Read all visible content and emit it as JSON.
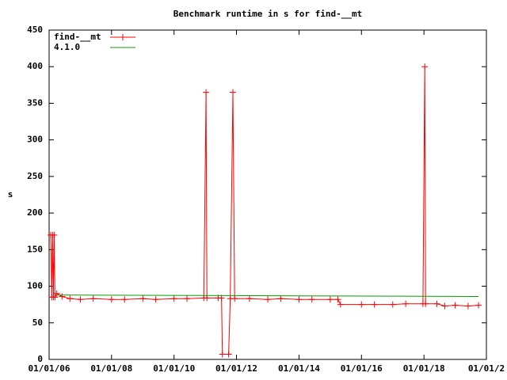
{
  "chart_data": {
    "type": "line",
    "title": "Benchmark runtime in s for find-__mt",
    "y_label": "s",
    "x": [
      "2006-01-20",
      "2006-02-01",
      "2006-02-10",
      "2006-02-20",
      "2006-03-01",
      "2006-03-10",
      "2006-04-01",
      "2006-06-01",
      "2006-09-01",
      "2007-01-01",
      "2007-06-01",
      "2008-01-01",
      "2008-06-01",
      "2009-01-01",
      "2009-06-01",
      "2010-01-01",
      "2010-06-01",
      "2010-12-15",
      "2011-01-10",
      "2011-01-20",
      "2011-06-01",
      "2011-07-10",
      "2011-07-20",
      "2011-10-01",
      "2011-10-20",
      "2011-11-20",
      "2011-12-10",
      "2012-06-01",
      "2013-01-01",
      "2013-06-01",
      "2014-01-01",
      "2014-06-01",
      "2015-01-01",
      "2015-04-01",
      "2015-05-01",
      "2016-01-01",
      "2016-06-01",
      "2017-01-01",
      "2017-06-01",
      "2017-12-20",
      "2018-01-10",
      "2018-01-20",
      "2018-06-01",
      "2018-09-01",
      "2019-01-01",
      "2019-06-01",
      "2019-10-01"
    ],
    "series": [
      {
        "name": "find-__mt",
        "color": "#ff0000",
        "markers": true,
        "values": [
          170,
          85,
          170,
          85,
          170,
          85,
          90,
          86,
          83,
          82,
          83,
          82,
          82,
          83,
          82,
          83,
          83,
          84,
          365,
          84,
          84,
          84,
          7,
          7,
          83,
          365,
          83,
          83,
          82,
          83,
          82,
          82,
          82,
          82,
          75,
          75,
          75,
          75,
          76,
          76,
          400,
          76,
          76,
          73,
          74,
          73,
          74
        ]
      },
      {
        "name": "4.1.0",
        "color": "#00a000",
        "markers": false,
        "x": [
          "2006-04-01",
          "2019-10-01"
        ],
        "values": [
          88,
          86
        ]
      }
    ],
    "xlim": [
      "2006-01-01",
      "2020-01-01"
    ],
    "xticks": [
      {
        "value": "2006-01-01",
        "label": "01/01/06"
      },
      {
        "value": "2008-01-01",
        "label": "01/01/08"
      },
      {
        "value": "2010-01-01",
        "label": "01/01/10"
      },
      {
        "value": "2012-01-01",
        "label": "01/01/12"
      },
      {
        "value": "2014-01-01",
        "label": "01/01/14"
      },
      {
        "value": "2016-01-01",
        "label": "01/01/16"
      },
      {
        "value": "2018-01-01",
        "label": "01/01/18"
      },
      {
        "value": "2020-01-01",
        "label": "01/01/2"
      }
    ],
    "ylim": [
      0,
      450
    ],
    "yticks": [
      0,
      50,
      100,
      150,
      200,
      250,
      300,
      350,
      400,
      450
    ],
    "grid": false,
    "legend": "top-left"
  }
}
